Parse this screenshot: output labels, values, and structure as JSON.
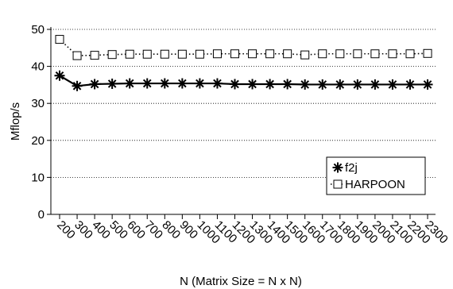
{
  "chart_data": {
    "type": "line",
    "xlabel": "N (Matrix Size = N x N)",
    "ylabel": "Mflop/s",
    "ylim": [
      0,
      50
    ],
    "yticks": [
      0,
      10,
      20,
      30,
      40,
      50
    ],
    "grid": "horizontal-dotted",
    "legend_position": "bottom-right",
    "categories": [
      "200",
      "300",
      "400",
      "500",
      "600",
      "700",
      "800",
      "900",
      "1000",
      "1100",
      "1200",
      "1300",
      "1400",
      "1500",
      "1600",
      "1700",
      "1800",
      "1900",
      "2000",
      "2100",
      "2200",
      "2300"
    ],
    "series": [
      {
        "name": "f2j",
        "marker": "asterisk",
        "line": "solid",
        "color": "#000000",
        "values": [
          37.5,
          34.7,
          35.2,
          35.3,
          35.4,
          35.4,
          35.4,
          35.4,
          35.4,
          35.4,
          35.2,
          35.2,
          35.2,
          35.2,
          35.1,
          35.1,
          35.1,
          35.1,
          35.1,
          35.1,
          35.1,
          35.1
        ]
      },
      {
        "name": "HARPOON",
        "marker": "square",
        "line": "dotted",
        "color": "#000000",
        "values": [
          47.3,
          42.9,
          43.0,
          43.2,
          43.3,
          43.3,
          43.3,
          43.3,
          43.3,
          43.4,
          43.4,
          43.4,
          43.4,
          43.4,
          43.1,
          43.4,
          43.4,
          43.4,
          43.4,
          43.4,
          43.4,
          43.5
        ]
      }
    ]
  }
}
